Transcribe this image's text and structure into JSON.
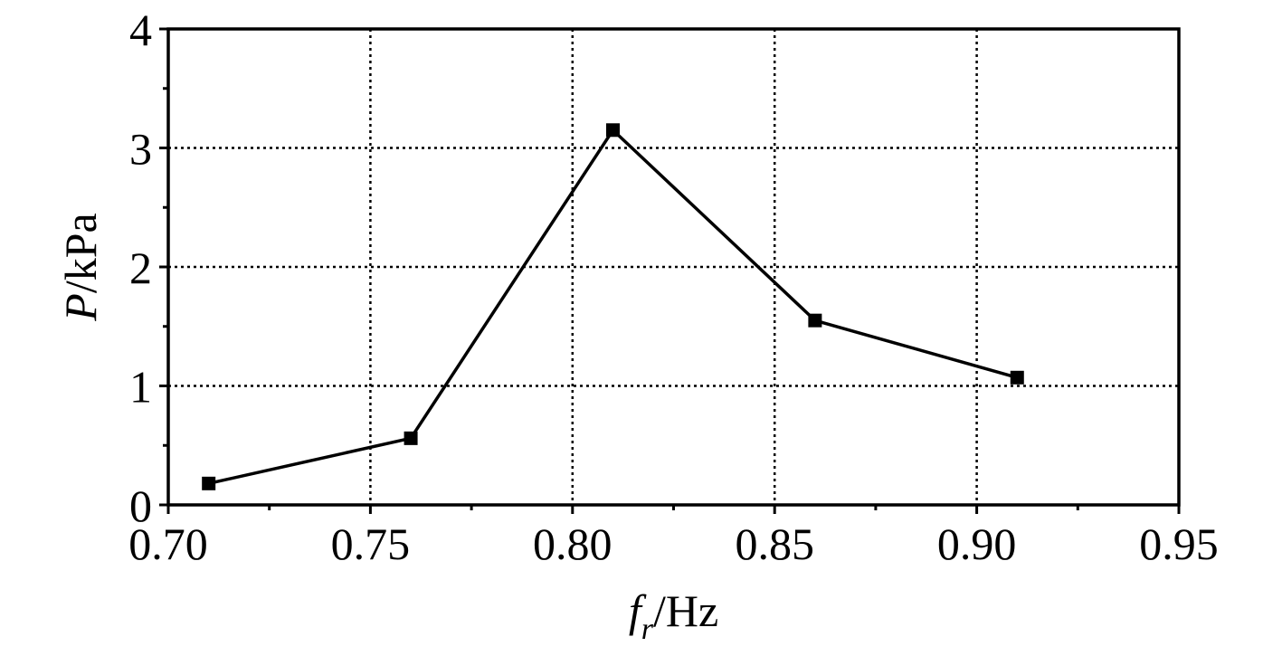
{
  "chart_data": {
    "type": "line",
    "x": [
      0.71,
      0.76,
      0.81,
      0.86,
      0.91
    ],
    "series": [
      {
        "values": [
          0.18,
          0.56,
          3.15,
          1.55,
          1.07
        ]
      }
    ],
    "xlabel": {
      "symbol": "f",
      "subscript": "r",
      "unit": "/Hz"
    },
    "ylabel": {
      "symbol": "P",
      "unit": "/kPa"
    },
    "xlim": [
      0.7,
      0.95
    ],
    "ylim": [
      0,
      4
    ],
    "xticks": [
      "0.70",
      "0.75",
      "0.80",
      "0.85",
      "0.90",
      "0.95"
    ],
    "yticks": [
      "0",
      "1",
      "2",
      "3",
      "4"
    ],
    "grid": true,
    "grid_style": "dotted",
    "marker": "square",
    "line_color": "#000000"
  }
}
